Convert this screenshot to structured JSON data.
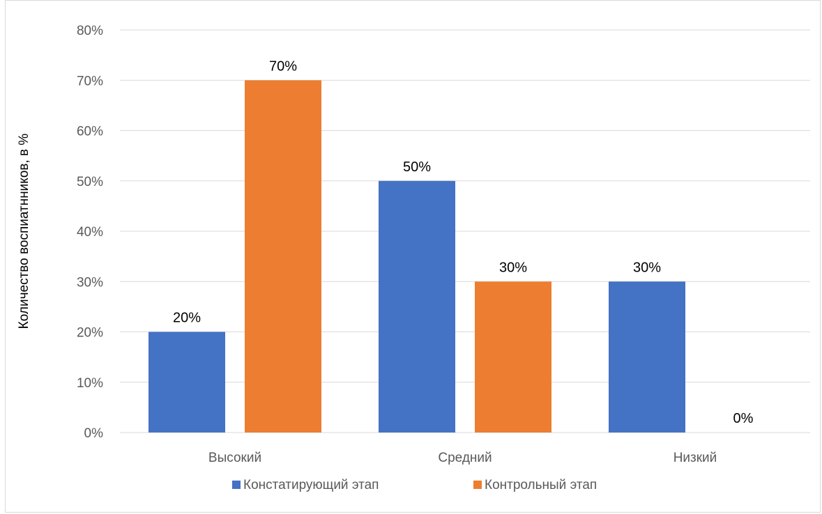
{
  "chart_data": {
    "type": "bar",
    "categories": [
      "Высокий",
      "Средний",
      "Низкий"
    ],
    "series": [
      {
        "name": "Констатирующий этап",
        "values": [
          20,
          50,
          30
        ],
        "color": "#4472c4"
      },
      {
        "name": "Контрольный этап",
        "values": [
          70,
          30,
          0
        ],
        "color": "#ed7d31"
      }
    ],
    "title": "",
    "xlabel": "",
    "ylabel": "Количество воспиатнников, в %",
    "ylim": [
      0,
      80
    ],
    "ytick_step": 10,
    "yticks": [
      "0%",
      "10%",
      "20%",
      "30%",
      "40%",
      "50%",
      "60%",
      "70%",
      "80%"
    ],
    "data_labels": [
      [
        "20%",
        "50%",
        "30%"
      ],
      [
        "70%",
        "30%",
        "0%"
      ]
    ],
    "grid": true,
    "legend_position": "bottom"
  }
}
